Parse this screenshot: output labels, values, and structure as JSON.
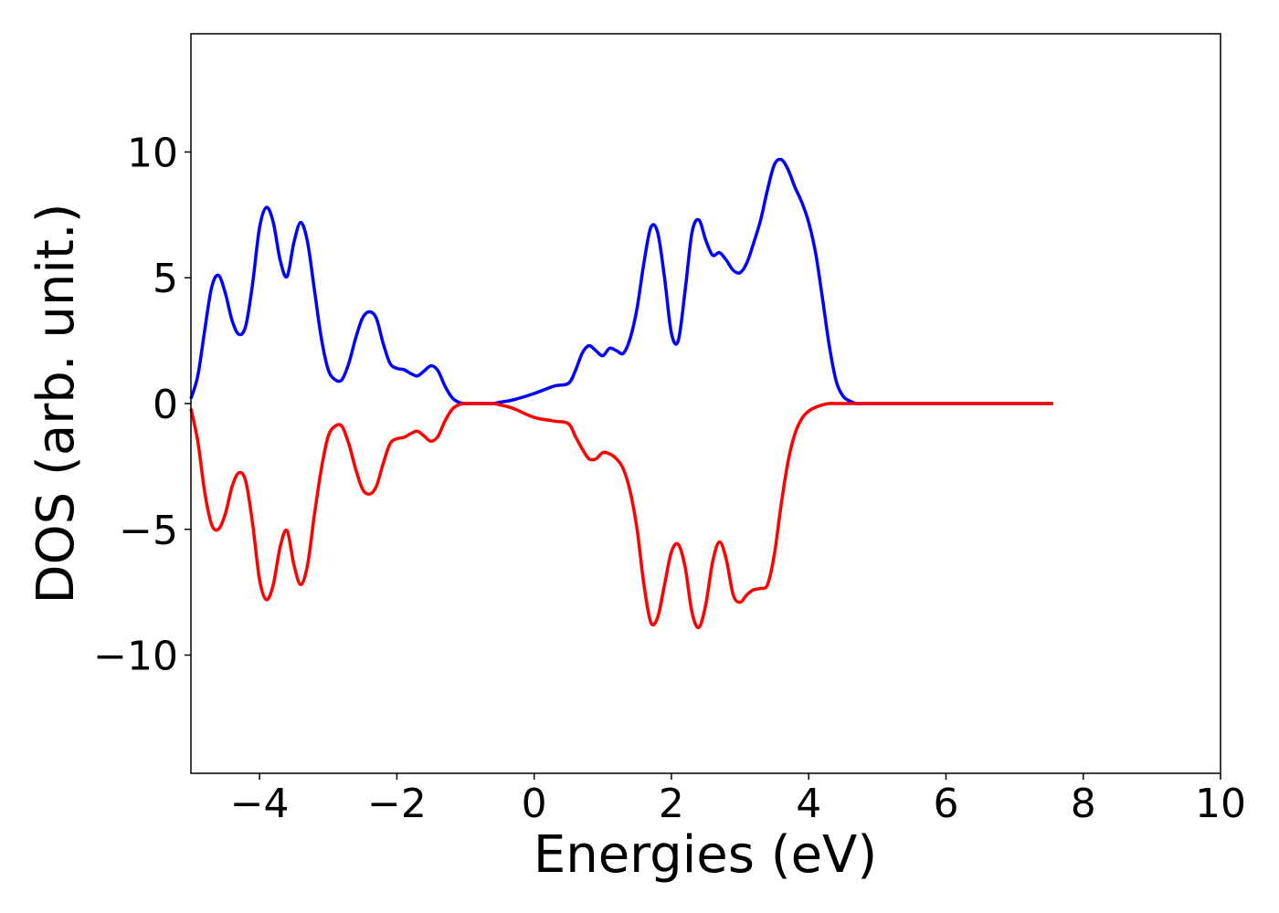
{
  "chart_data": {
    "type": "line",
    "title": "",
    "xlabel": "Energies (eV)",
    "ylabel": "DOS (arb. unit.)",
    "xlim": [
      -5,
      10
    ],
    "ylim": [
      -14.7,
      14.7
    ],
    "grid": false,
    "legend": "none",
    "xticks": [
      {
        "value": -4,
        "label": "−4"
      },
      {
        "value": -2,
        "label": "−2"
      },
      {
        "value": 0,
        "label": "0"
      },
      {
        "value": 2,
        "label": "2"
      },
      {
        "value": 4,
        "label": "4"
      },
      {
        "value": 6,
        "label": "6"
      },
      {
        "value": 8,
        "label": "8"
      },
      {
        "value": 10,
        "label": "10"
      }
    ],
    "yticks": [
      {
        "value": -10,
        "label": "−10"
      },
      {
        "value": -5,
        "label": "−5"
      },
      {
        "value": 0,
        "label": "0"
      },
      {
        "value": 5,
        "label": "5"
      },
      {
        "value": 10,
        "label": "10"
      }
    ],
    "series": [
      {
        "color": "#0000ff",
        "x": [
          -5.0,
          -4.9,
          -4.8,
          -4.7,
          -4.6,
          -4.5,
          -4.4,
          -4.3,
          -4.2,
          -4.1,
          -4.0,
          -3.9,
          -3.8,
          -3.7,
          -3.6,
          -3.5,
          -3.4,
          -3.3,
          -3.2,
          -3.1,
          -3.0,
          -2.9,
          -2.8,
          -2.7,
          -2.6,
          -2.5,
          -2.4,
          -2.3,
          -2.2,
          -2.1,
          -2.0,
          -1.9,
          -1.8,
          -1.7,
          -1.6,
          -1.5,
          -1.4,
          -1.3,
          -1.2,
          -1.1,
          -1.0,
          -0.9,
          -0.8,
          -0.7,
          -0.6,
          -0.5,
          -0.3,
          0.0,
          0.3,
          0.5,
          0.6,
          0.7,
          0.8,
          0.9,
          1.0,
          1.1,
          1.2,
          1.3,
          1.4,
          1.5,
          1.6,
          1.7,
          1.8,
          1.9,
          2.0,
          2.1,
          2.2,
          2.3,
          2.4,
          2.5,
          2.6,
          2.7,
          2.8,
          2.9,
          3.0,
          3.1,
          3.2,
          3.3,
          3.4,
          3.5,
          3.6,
          3.7,
          3.8,
          3.9,
          4.0,
          4.1,
          4.2,
          4.3,
          4.4,
          4.5,
          4.6,
          4.7,
          4.8,
          4.9,
          5.0,
          5.1,
          5.2,
          5.3,
          5.4,
          5.5,
          5.6,
          5.7,
          5.8,
          5.9,
          6.0,
          6.5,
          7.0,
          7.56
        ],
        "y": [
          0.2,
          1.1,
          2.9,
          4.6,
          5.1,
          4.4,
          3.3,
          2.75,
          3.1,
          4.8,
          7.0,
          7.8,
          7.2,
          5.7,
          5.05,
          6.4,
          7.2,
          6.4,
          4.5,
          2.6,
          1.35,
          0.95,
          0.95,
          1.6,
          2.6,
          3.4,
          3.65,
          3.4,
          2.4,
          1.6,
          1.4,
          1.35,
          1.2,
          1.1,
          1.3,
          1.5,
          1.3,
          0.7,
          0.25,
          0.05,
          0.0,
          0.0,
          0.0,
          0.0,
          0.0,
          0.05,
          0.15,
          0.4,
          0.7,
          0.8,
          1.3,
          2.0,
          2.3,
          2.1,
          1.9,
          2.2,
          2.1,
          2.0,
          2.6,
          3.8,
          5.6,
          7.0,
          6.8,
          5.0,
          2.8,
          2.5,
          4.5,
          6.8,
          7.3,
          6.5,
          5.9,
          6.0,
          5.7,
          5.3,
          5.2,
          5.6,
          6.4,
          7.3,
          8.5,
          9.5,
          9.7,
          9.3,
          8.6,
          8.0,
          7.2,
          6.0,
          4.2,
          2.3,
          0.9,
          0.3,
          0.1,
          0.0,
          0.0,
          0.0,
          0.0,
          0.0,
          0.0,
          0.0,
          0.0,
          0.0,
          0.0,
          0.0,
          0.0,
          0.0,
          0.0,
          0.0,
          0.0,
          0.0
        ]
      },
      {
        "color": "#ff0000",
        "x": [
          -5.0,
          -4.9,
          -4.8,
          -4.7,
          -4.6,
          -4.5,
          -4.4,
          -4.3,
          -4.2,
          -4.1,
          -4.0,
          -3.9,
          -3.8,
          -3.7,
          -3.6,
          -3.5,
          -3.4,
          -3.3,
          -3.2,
          -3.1,
          -3.0,
          -2.9,
          -2.8,
          -2.7,
          -2.6,
          -2.5,
          -2.4,
          -2.3,
          -2.2,
          -2.1,
          -2.0,
          -1.9,
          -1.8,
          -1.7,
          -1.6,
          -1.5,
          -1.4,
          -1.3,
          -1.2,
          -1.1,
          -1.0,
          -0.9,
          -0.8,
          -0.7,
          -0.6,
          -0.5,
          -0.3,
          0.0,
          0.3,
          0.5,
          0.6,
          0.7,
          0.8,
          0.9,
          1.0,
          1.1,
          1.2,
          1.3,
          1.4,
          1.5,
          1.6,
          1.7,
          1.8,
          1.9,
          2.0,
          2.1,
          2.2,
          2.3,
          2.4,
          2.5,
          2.6,
          2.7,
          2.8,
          2.9,
          3.0,
          3.1,
          3.2,
          3.3,
          3.4,
          3.5,
          3.6,
          3.7,
          3.8,
          3.9,
          4.0,
          4.1,
          4.2,
          4.3,
          4.4,
          4.5,
          4.6,
          4.7,
          4.8,
          4.9,
          5.0,
          5.1,
          5.2,
          5.3,
          5.4,
          5.5,
          5.6,
          5.7,
          5.8,
          5.9,
          6.0,
          6.5,
          7.0,
          7.56
        ],
        "y": [
          -0.2,
          -1.5,
          -3.5,
          -4.8,
          -5.0,
          -4.4,
          -3.3,
          -2.75,
          -3.1,
          -4.8,
          -7.0,
          -7.8,
          -7.2,
          -5.7,
          -5.05,
          -6.4,
          -7.2,
          -6.4,
          -4.4,
          -2.6,
          -1.3,
          -0.9,
          -0.9,
          -1.6,
          -2.6,
          -3.4,
          -3.6,
          -3.3,
          -2.4,
          -1.6,
          -1.4,
          -1.35,
          -1.2,
          -1.1,
          -1.3,
          -1.5,
          -1.3,
          -0.7,
          -0.25,
          -0.05,
          0.0,
          0.0,
          0.0,
          0.0,
          0.0,
          -0.05,
          -0.2,
          -0.55,
          -0.7,
          -0.8,
          -1.3,
          -1.8,
          -2.2,
          -2.2,
          -1.95,
          -2.0,
          -2.2,
          -2.6,
          -3.5,
          -5.0,
          -7.2,
          -8.7,
          -8.5,
          -7.2,
          -5.9,
          -5.6,
          -6.5,
          -8.3,
          -8.9,
          -8.0,
          -6.3,
          -5.5,
          -6.2,
          -7.6,
          -7.9,
          -7.6,
          -7.4,
          -7.35,
          -7.2,
          -6.0,
          -4.0,
          -2.3,
          -1.2,
          -0.6,
          -0.3,
          -0.15,
          -0.05,
          0.0,
          0.0,
          0.0,
          0.0,
          0.0,
          0.0,
          0.0,
          0.0,
          0.0,
          0.0,
          0.0,
          0.0,
          0.0,
          0.0,
          0.0,
          0.0,
          0.0,
          0.0,
          0.0,
          0.0,
          0.0
        ]
      }
    ]
  }
}
